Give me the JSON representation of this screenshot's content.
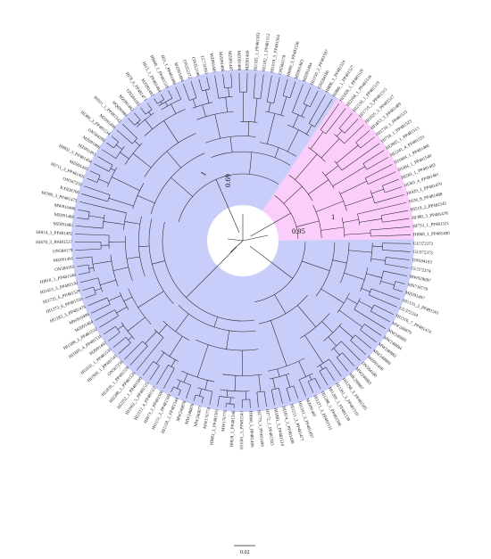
{
  "colors": {
    "main_clade": "#c9cdfa",
    "pink_clade": "#fbcdfb",
    "branch": "#222222"
  },
  "support_values": [
    "0.69",
    "1",
    "1",
    "0.95"
  ],
  "scale_bar_label": "0.02",
  "leaves": [
    "HI868_1_PP481490",
    "HI753_1_PP481521",
    "HI380_3_PP481478",
    "HI519_2_PP481545",
    "HI36_8_PP481488",
    "HI429_1_PP481470",
    "HI383_4_PP481481",
    "HI283_1_PP481483",
    "HI384_1_PP481540",
    "HI1804_1_PP481480",
    "HI2241_4_PP481533",
    "HI2805_1_PP481513",
    "HI718_1_PP481523",
    "HI1710_1_PP481515",
    "HI1853_3_PP481489",
    "HI1825_3_PP481517",
    "HI1719_3_PP481515",
    "HI2158_1_PP481519",
    "HI2104_1_PP481516",
    "HI1828_1_PP481520",
    "HI866_1_PP481527",
    "HI896_1_PP481524",
    "ON584186",
    "HI1150_2_PP481507",
    "MZ091494",
    "MZ091483",
    "HI669_3_PP481536",
    "ON584178",
    "HI1018_5_PP481504",
    "HI1182_1_PP481512",
    "HI1165_1_PP481502",
    "MZ091489",
    "MZ091488",
    "MZ091487",
    "MZ091486",
    "MZ091485",
    "LC731891",
    "ON352186",
    "ON352172",
    "MZ091484",
    "HI3_1_PP481486",
    "HI660_1_PP481518",
    "HI15_1_PP481484",
    "MZ091482",
    "HI78_6_PP481471",
    "ON584181",
    "MZ091482",
    "HQ696989",
    "HI911_1_PP481542",
    "MZ091496",
    "HI380_3_PP481534",
    "ON584180",
    "MZ091486",
    "MZ091493",
    "HI802_3_PP481494",
    "MZ091495",
    "HI711_3_PP481491",
    "ON567259",
    "KX826706",
    "HI180_3_PP481475",
    "MW810498",
    "MZ091488",
    "MZ091485",
    "HI814_3_PP481492",
    "HI670_3_PP481537",
    "ON584179",
    "MZ091491",
    "ON584185",
    "HI818_1_PP481548",
    "HI1453_3_PP481530",
    "HI1725_6_PP481529",
    "HI1273_6_PP481550",
    "HI1183_3_PP481476",
    "MW810496",
    "MZ091484",
    "HI1388_3_PP481532",
    "HI1605_4_PP481531",
    "MZ091492",
    "HI1810_1_PP481535",
    "HI1906_1_PP481541",
    "ON567256",
    "HI1818_1_PP481539",
    "HI2288_1_PP481526",
    "HI2252_1_PP481500",
    "HI1962_5_PP481525",
    "HI2112_4_PP481522",
    "HI873_2_PP481506",
    "HI1151_3_PP481509",
    "HI1158_2_PP481544",
    "MW240878",
    "MW240876",
    "MW240877",
    "MW176774",
    "HI803_3_PP481501",
    "MW176776",
    "HI828_1_PP481546",
    "HI1001_3_PP481543",
    "HI660_5_PP481499",
    "HI779_3_PP481499",
    "HI772_1_PP481503",
    "HI1881_5_PP481514",
    "HI1874_3_PP481498",
    "HI1211_3_PP481477",
    "HI1201_3_PP481497",
    "MZ091487",
    "HI1271_3_PP481511",
    "HI1288_3_PP481508",
    "HI1269_3_PP481538",
    "HI1261_3_PP481510",
    "HI1298_3_PP481505",
    "MK290867",
    "MW240883",
    "ON584180",
    "MZ091490",
    "MW240880",
    "MW240882",
    "MW240884",
    "MW240881",
    "MW240879",
    "HI1376_7_PP481474",
    "GU372334",
    "HI1155_2_PP481501",
    "MZ091497",
    "MN716779",
    "MW929097",
    "GU372374",
    "ON584183",
    "GU372373",
    "GU372372"
  ]
}
